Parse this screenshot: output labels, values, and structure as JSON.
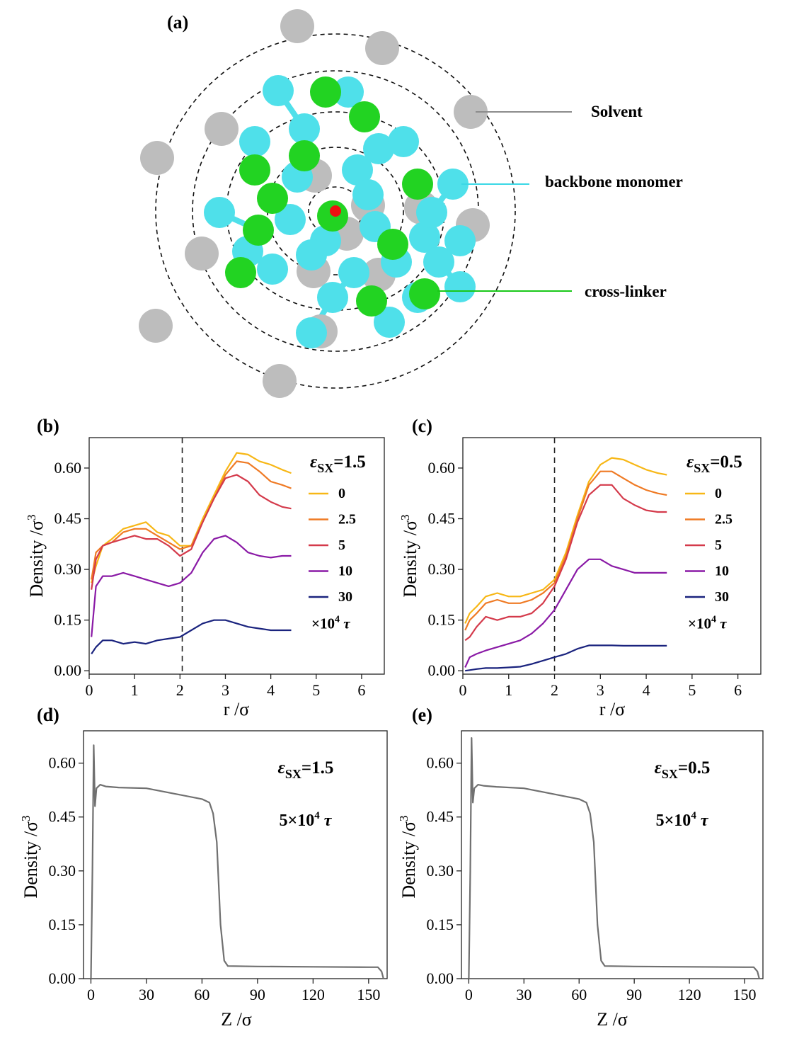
{
  "panel_a": {
    "label": "(a)",
    "legend": [
      {
        "label": "Solvent",
        "color": "#8c8c8c"
      },
      {
        "label": "backbone monomer",
        "color": "#3ad8e6"
      },
      {
        "label": "cross-linker",
        "color": "#19c819"
      }
    ],
    "colors": {
      "solvent": "#bdbdbd",
      "backbone": "#4fe0ea",
      "crosslinker": "#22d322",
      "center": "#ee1111"
    }
  },
  "chart_data": [
    {
      "panel": "(b)",
      "type": "line",
      "xlabel": "r /σ",
      "ylabel": "Density /σ",
      "ylabel_sup": "3",
      "xlim": [
        0,
        6.5
      ],
      "ylim": [
        -0.01,
        0.69
      ],
      "xticks": [
        "0",
        "1",
        "2",
        "3",
        "4",
        "5",
        "6"
      ],
      "yticks": [
        "0.00",
        "0.15",
        "0.30",
        "0.45",
        "0.60"
      ],
      "vline_x": 2.05,
      "legend_title": {
        "eps": "ε",
        "sub": "SX",
        "value": "=1.5"
      },
      "legend_footer": {
        "prefix": "×10",
        "sup": "4",
        "tau": "τ"
      },
      "x": [
        0.05,
        0.15,
        0.3,
        0.5,
        0.75,
        1.0,
        1.25,
        1.5,
        1.75,
        2.0,
        2.25,
        2.5,
        2.75,
        3.0,
        3.25,
        3.5,
        3.75,
        4.0,
        4.25,
        4.45
      ],
      "series": [
        {
          "name": "0",
          "color": "#f7b716",
          "values": [
            0.26,
            0.31,
            0.37,
            0.39,
            0.42,
            0.43,
            0.44,
            0.41,
            0.4,
            0.37,
            0.37,
            0.45,
            0.52,
            0.59,
            0.645,
            0.64,
            0.62,
            0.61,
            0.595,
            0.585
          ]
        },
        {
          "name": "2.5",
          "color": "#ef7a24",
          "values": [
            0.27,
            0.35,
            0.37,
            0.38,
            0.41,
            0.42,
            0.42,
            0.4,
            0.38,
            0.36,
            0.37,
            0.44,
            0.51,
            0.58,
            0.62,
            0.615,
            0.59,
            0.56,
            0.55,
            0.54
          ]
        },
        {
          "name": "5",
          "color": "#d43a4b",
          "values": [
            0.24,
            0.33,
            0.37,
            0.38,
            0.39,
            0.4,
            0.39,
            0.39,
            0.37,
            0.34,
            0.36,
            0.44,
            0.51,
            0.57,
            0.58,
            0.56,
            0.52,
            0.5,
            0.485,
            0.48
          ]
        },
        {
          "name": "10",
          "color": "#8a1aa6",
          "values": [
            0.1,
            0.25,
            0.28,
            0.28,
            0.29,
            0.28,
            0.27,
            0.26,
            0.25,
            0.26,
            0.29,
            0.35,
            0.39,
            0.4,
            0.38,
            0.35,
            0.34,
            0.335,
            0.34,
            0.34
          ]
        },
        {
          "name": "30",
          "color": "#1a237e",
          "values": [
            0.05,
            0.07,
            0.09,
            0.09,
            0.08,
            0.085,
            0.08,
            0.09,
            0.095,
            0.1,
            0.12,
            0.14,
            0.15,
            0.15,
            0.14,
            0.13,
            0.125,
            0.12,
            0.12,
            0.12
          ]
        }
      ]
    },
    {
      "panel": "(c)",
      "type": "line",
      "xlabel": "r /σ",
      "ylabel": "Density /σ",
      "ylabel_sup": "3",
      "xlim": [
        0,
        6.5
      ],
      "ylim": [
        -0.01,
        0.69
      ],
      "xticks": [
        "0",
        "1",
        "2",
        "3",
        "4",
        "5",
        "6"
      ],
      "yticks": [
        "0.00",
        "0.15",
        "0.30",
        "0.45",
        "0.60"
      ],
      "vline_x": 2.0,
      "legend_title": {
        "eps": "ε",
        "sub": "SX",
        "value": "=0.5"
      },
      "legend_footer": {
        "prefix": "×10",
        "sup": "4",
        "tau": "τ"
      },
      "x": [
        0.05,
        0.15,
        0.3,
        0.5,
        0.75,
        1.0,
        1.25,
        1.5,
        1.75,
        2.0,
        2.25,
        2.5,
        2.75,
        3.0,
        3.25,
        3.5,
        3.75,
        4.0,
        4.25,
        4.45
      ],
      "series": [
        {
          "name": "0",
          "color": "#f7b716",
          "values": [
            0.14,
            0.17,
            0.19,
            0.22,
            0.23,
            0.22,
            0.22,
            0.23,
            0.24,
            0.27,
            0.35,
            0.46,
            0.56,
            0.61,
            0.63,
            0.625,
            0.61,
            0.595,
            0.585,
            0.58
          ]
        },
        {
          "name": "2.5",
          "color": "#ef7a24",
          "values": [
            0.12,
            0.15,
            0.17,
            0.2,
            0.21,
            0.2,
            0.2,
            0.21,
            0.23,
            0.26,
            0.34,
            0.45,
            0.55,
            0.59,
            0.59,
            0.57,
            0.55,
            0.535,
            0.525,
            0.52
          ]
        },
        {
          "name": "5",
          "color": "#d43a4b",
          "values": [
            0.09,
            0.1,
            0.13,
            0.16,
            0.15,
            0.16,
            0.16,
            0.17,
            0.2,
            0.25,
            0.33,
            0.44,
            0.52,
            0.55,
            0.55,
            0.51,
            0.49,
            0.475,
            0.47,
            0.47
          ]
        },
        {
          "name": "10",
          "color": "#8a1aa6",
          "values": [
            0.01,
            0.04,
            0.05,
            0.06,
            0.07,
            0.08,
            0.09,
            0.11,
            0.14,
            0.18,
            0.24,
            0.3,
            0.33,
            0.33,
            0.31,
            0.3,
            0.29,
            0.29,
            0.29,
            0.29
          ]
        },
        {
          "name": "30",
          "color": "#1a237e",
          "values": [
            0.0,
            0.002,
            0.005,
            0.008,
            0.008,
            0.01,
            0.012,
            0.02,
            0.03,
            0.04,
            0.05,
            0.065,
            0.075,
            0.075,
            0.075,
            0.074,
            0.074,
            0.074,
            0.074,
            0.074
          ]
        }
      ]
    },
    {
      "panel": "(d)",
      "type": "line",
      "xlabel": "Z /σ",
      "ylabel": "Density /σ",
      "ylabel_sup": "3",
      "xlim": [
        -4,
        160
      ],
      "ylim": [
        0,
        0.69
      ],
      "xticks": [
        "0",
        "30",
        "60",
        "90",
        "120",
        "150"
      ],
      "yticks": [
        "0.00",
        "0.15",
        "0.30",
        "0.45",
        "0.60"
      ],
      "annotation": {
        "eps": "ε",
        "sub": "SX",
        "value": "=1.5",
        "line2_prefix": "5×10",
        "line2_sup": "4",
        "tau": "τ"
      },
      "x": [
        0,
        0.8,
        1.5,
        2.2,
        3.0,
        5,
        8,
        15,
        30,
        45,
        60,
        64,
        66,
        68,
        70,
        72,
        74,
        90,
        120,
        150,
        155,
        157,
        158
      ],
      "series": [
        {
          "name": "",
          "color": "#707070",
          "values": [
            0.0,
            0.3,
            0.65,
            0.48,
            0.53,
            0.54,
            0.535,
            0.532,
            0.53,
            0.515,
            0.5,
            0.49,
            0.46,
            0.38,
            0.15,
            0.05,
            0.035,
            0.034,
            0.033,
            0.032,
            0.032,
            0.02,
            0.0
          ]
        }
      ]
    },
    {
      "panel": "(e)",
      "type": "line",
      "xlabel": "Z /σ",
      "ylabel": "Density /σ",
      "ylabel_sup": "3",
      "xlim": [
        -4,
        160
      ],
      "ylim": [
        0,
        0.69
      ],
      "xticks": [
        "0",
        "30",
        "60",
        "90",
        "120",
        "150"
      ],
      "yticks": [
        "0.00",
        "0.15",
        "0.30",
        "0.45",
        "0.60"
      ],
      "annotation": {
        "eps": "ε",
        "sub": "SX",
        "value": "=0.5",
        "line2_prefix": "5×10",
        "line2_sup": "4",
        "tau": "τ"
      },
      "x": [
        0,
        0.8,
        1.5,
        2.2,
        3.0,
        5,
        8,
        15,
        30,
        45,
        60,
        64,
        66,
        68,
        70,
        72,
        74,
        90,
        120,
        150,
        155,
        157,
        158
      ],
      "series": [
        {
          "name": "",
          "color": "#707070",
          "values": [
            0.0,
            0.3,
            0.67,
            0.49,
            0.53,
            0.54,
            0.537,
            0.534,
            0.53,
            0.515,
            0.5,
            0.49,
            0.46,
            0.38,
            0.15,
            0.05,
            0.035,
            0.034,
            0.033,
            0.032,
            0.032,
            0.02,
            0.0
          ]
        }
      ]
    }
  ]
}
